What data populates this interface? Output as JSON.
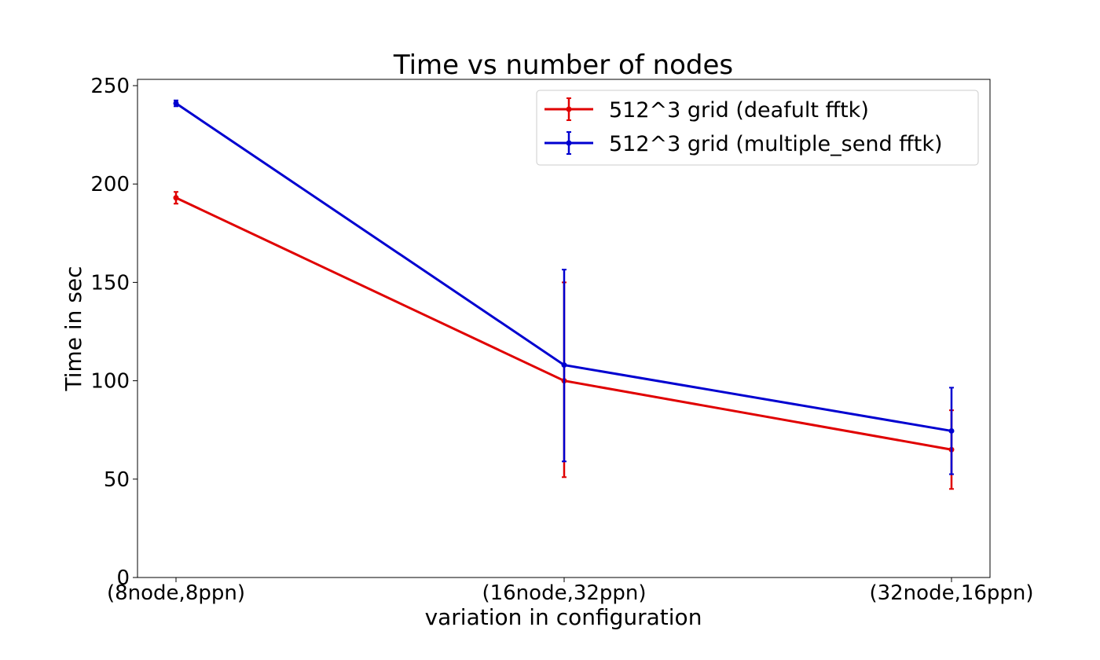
{
  "chart_data": {
    "type": "line",
    "title": "Time vs number of nodes",
    "xlabel": "variation in configuration",
    "ylabel": "Time in sec",
    "categories": [
      "(8node,8ppn)",
      "(16node,32ppn)",
      "(32node,16ppn)"
    ],
    "ylim": [
      0,
      250
    ],
    "yticks": [
      0,
      50,
      100,
      150,
      200,
      250
    ],
    "grid": false,
    "legend_position": "top-right",
    "series": [
      {
        "name": "512^3 grid (deafult fftk)",
        "color": "#e00000",
        "values": [
          193,
          100,
          65
        ],
        "error_low": [
          3,
          49,
          20
        ],
        "error_high": [
          3,
          50,
          20
        ]
      },
      {
        "name": "512^3 grid (multiple_send fftk)",
        "color": "#0000d0",
        "values": [
          241,
          108,
          74.5
        ],
        "error_low": [
          1.5,
          49,
          22
        ],
        "error_high": [
          1.5,
          48.5,
          22
        ]
      }
    ]
  }
}
